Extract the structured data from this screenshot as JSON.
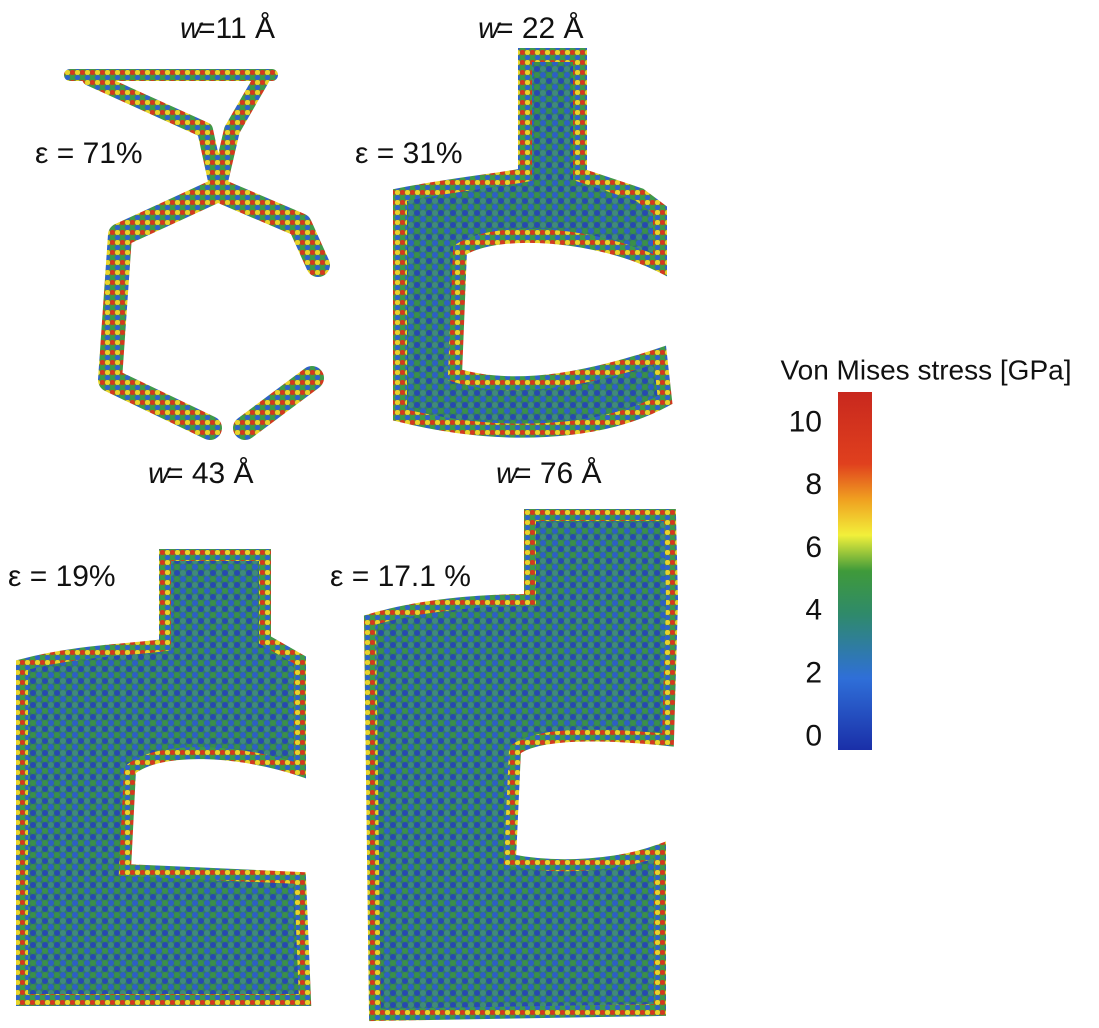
{
  "panels": [
    {
      "w": "w",
      "width": "=11 Å",
      "strain": "ε  =  71%"
    },
    {
      "w": "w",
      "width": "= 22 Å",
      "strain": "ε  =  31%"
    },
    {
      "w": "w",
      "width": "= 43 Å",
      "strain": "ε = 19%"
    },
    {
      "w": "w",
      "width": "= 76 Å",
      "strain": "ε  = 17.1 %"
    }
  ],
  "colorbar": {
    "title": "Von Mises stress [GPa]",
    "lim": [
      -0.4,
      11
    ],
    "ticks": [
      0,
      2,
      4,
      6,
      8,
      10
    ]
  }
}
